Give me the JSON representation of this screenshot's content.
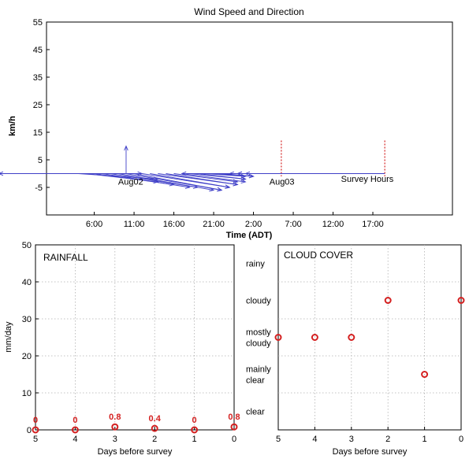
{
  "colors": {
    "wind": "#4040c8",
    "survey": "#d42020",
    "marker": "#d42020"
  },
  "chart_data": [
    {
      "type": "line",
      "title": "Wind Speed and Direction",
      "ylabel": "km/h",
      "xlabel": "Time (ADT)",
      "ylim": [
        -15,
        55
      ],
      "yticks": [
        -5,
        5,
        15,
        25,
        35,
        45,
        55
      ],
      "xlim": [
        0,
        51
      ],
      "x_tick_labels": [
        {
          "t": 6,
          "label": "6:00"
        },
        {
          "t": 11,
          "label": "11:00"
        },
        {
          "t": 16,
          "label": "16:00"
        },
        {
          "t": 21,
          "label": "21:00"
        },
        {
          "t": 26,
          "label": "2:00"
        },
        {
          "t": 31,
          "label": "7:00"
        },
        {
          "t": 36,
          "label": "12:00"
        },
        {
          "t": 41,
          "label": "17:00"
        }
      ],
      "annotations": [
        {
          "text": "Aug02",
          "t": 9,
          "v": -4
        },
        {
          "text": "Aug03",
          "t": 28,
          "v": -4
        },
        {
          "text": "Survey Hours",
          "t": 37,
          "v": -3
        }
      ],
      "survey_hours": [
        29.5,
        42.5
      ],
      "wind_vectors": [
        {
          "t": 3,
          "u": 9,
          "v": 0
        },
        {
          "t": 4,
          "u": 10,
          "v": 2
        },
        {
          "t": 5,
          "u": 9,
          "v": 3
        },
        {
          "t": 6,
          "u": 10,
          "v": 4
        },
        {
          "t": 7,
          "u": 11,
          "v": 5
        },
        {
          "t": 8,
          "u": 11,
          "v": 5
        },
        {
          "t": 9,
          "u": 12,
          "v": 6
        },
        {
          "t": 10,
          "u": 12,
          "v": 6
        },
        {
          "t": 11,
          "u": 11,
          "v": 6
        },
        {
          "t": 12,
          "u": 11,
          "v": 5
        },
        {
          "t": 13,
          "u": 10,
          "v": 5
        },
        {
          "t": 14,
          "u": 10,
          "v": 4
        },
        {
          "t": 15,
          "u": 9,
          "v": 4
        },
        {
          "t": 16,
          "u": 8,
          "v": 3
        },
        {
          "t": 17,
          "u": 8,
          "v": 3
        },
        {
          "t": 18,
          "u": 7,
          "v": 2
        },
        {
          "t": 19,
          "u": 6,
          "v": 2
        },
        {
          "t": 20,
          "u": 5,
          "v": 1
        },
        {
          "t": 21,
          "u": 5,
          "v": 1
        },
        {
          "t": 22,
          "u": 4,
          "v": 1
        },
        {
          "t": 24,
          "u": -7,
          "v": 0
        },
        {
          "t": 26,
          "u": -3,
          "v": 0
        },
        {
          "t": 28,
          "u": -4,
          "v": 0
        },
        {
          "t": 29,
          "u": -5,
          "v": 0
        },
        {
          "t": 10,
          "u": 0,
          "v": -10
        },
        {
          "t": 10,
          "u": -16,
          "v": 0
        },
        {
          "t": 40,
          "u": -15,
          "v": 0
        }
      ]
    },
    {
      "type": "scatter",
      "title": "RAINFALL",
      "xlabel": "Days before survey",
      "ylabel": "mm/day",
      "ylim": [
        0,
        50
      ],
      "yticks": [
        0,
        10,
        20,
        30,
        40,
        50
      ],
      "x": [
        5,
        4,
        3,
        2,
        1,
        0
      ],
      "values": [
        0,
        0,
        0.8,
        0.4,
        0,
        0.8
      ],
      "data_labels": [
        "0",
        "0",
        "0.8",
        "0.4",
        "0",
        "0.8"
      ],
      "xlim": [
        5,
        0
      ],
      "grid": true
    },
    {
      "type": "scatter",
      "title": "CLOUD COVER",
      "xlabel": "Days before survey",
      "categories_y": [
        "clear",
        "mainly clear",
        "mostly cloudy",
        "cloudy",
        "rainy"
      ],
      "x": [
        5,
        4,
        3,
        2,
        1,
        0
      ],
      "values": [
        "mostly cloudy",
        "mostly cloudy",
        "mostly cloudy",
        "cloudy",
        "mainly clear",
        "cloudy"
      ],
      "xlim": [
        5,
        0
      ],
      "grid": true
    }
  ]
}
